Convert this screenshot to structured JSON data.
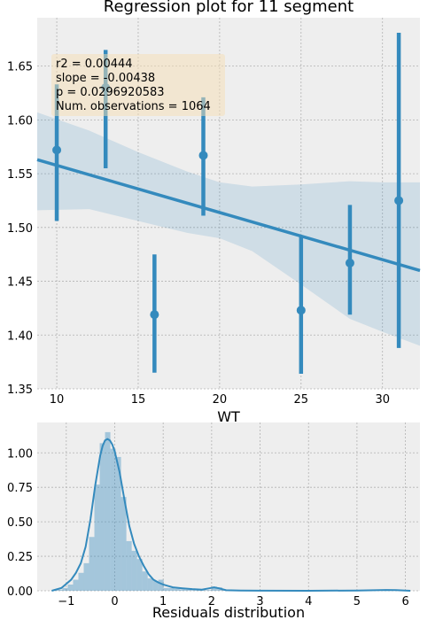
{
  "chart_data": [
    {
      "type": "scatter",
      "title": "Regression plot for 11 segment",
      "xlabel": "WT",
      "ylabel": "",
      "xlim": [
        8.8,
        32.3
      ],
      "ylim": [
        1.35,
        1.695
      ],
      "x_ticks": [
        10,
        15,
        20,
        25,
        30
      ],
      "y_ticks": [
        1.35,
        1.4,
        1.45,
        1.5,
        1.55,
        1.6,
        1.65
      ],
      "grid": true,
      "points": [
        {
          "x": 10,
          "y": 1.572,
          "err_low": 1.506,
          "err_high": 1.633
        },
        {
          "x": 13,
          "y": 1.63,
          "err_low": 1.555,
          "err_high": 1.665
        },
        {
          "x": 16,
          "y": 1.419,
          "err_low": 1.365,
          "err_high": 1.475
        },
        {
          "x": 19,
          "y": 1.567,
          "err_low": 1.511,
          "err_high": 1.621
        },
        {
          "x": 25,
          "y": 1.423,
          "err_low": 1.364,
          "err_high": 1.492
        },
        {
          "x": 28,
          "y": 1.467,
          "err_low": 1.419,
          "err_high": 1.521
        },
        {
          "x": 31,
          "y": 1.525,
          "err_low": 1.388,
          "err_high": 1.681
        }
      ],
      "regression_line": {
        "x": [
          8.8,
          32.3
        ],
        "y": [
          1.563,
          1.46
        ]
      },
      "confidence_band": {
        "x": [
          8.8,
          12,
          15,
          18,
          20,
          22,
          25,
          28,
          30,
          32.3
        ],
        "upper": [
          1.607,
          1.59,
          1.57,
          1.552,
          1.542,
          1.538,
          1.54,
          1.543,
          1.542,
          1.542
        ],
        "lower": [
          1.516,
          1.517,
          1.506,
          1.495,
          1.49,
          1.478,
          1.447,
          1.415,
          1.403,
          1.39
        ]
      },
      "annotation": [
        "r2 = 0.00444",
        "slope = -0.00438",
        "p = 0.0296920583",
        "Num. observations = 1064"
      ],
      "colors": {
        "line": "#348abd",
        "band": "#348abd",
        "annotation_box": "#f5deb3",
        "background": "#eeeeee"
      }
    },
    {
      "type": "bar",
      "title": "",
      "xlabel": "Residuals distribution",
      "ylabel": "",
      "xlim": [
        -1.6,
        6.3
      ],
      "ylim": [
        0,
        1.22
      ],
      "x_ticks": [
        -1,
        0,
        1,
        2,
        3,
        4,
        5,
        6
      ],
      "y_ticks": [
        0.0,
        0.25,
        0.5,
        0.75,
        1.0
      ],
      "grid": true,
      "histogram": {
        "bin_width": 0.11,
        "bins": [
          {
            "x": -1.3,
            "y": 0.003
          },
          {
            "x": -1.19,
            "y": 0.008
          },
          {
            "x": -1.08,
            "y": 0.02
          },
          {
            "x": -0.97,
            "y": 0.045
          },
          {
            "x": -0.86,
            "y": 0.08
          },
          {
            "x": -0.75,
            "y": 0.13
          },
          {
            "x": -0.64,
            "y": 0.2
          },
          {
            "x": -0.53,
            "y": 0.39
          },
          {
            "x": -0.42,
            "y": 0.77
          },
          {
            "x": -0.31,
            "y": 1.07
          },
          {
            "x": -0.2,
            "y": 1.15
          },
          {
            "x": -0.09,
            "y": 1.03
          },
          {
            "x": 0.02,
            "y": 0.97
          },
          {
            "x": 0.13,
            "y": 0.68
          },
          {
            "x": 0.24,
            "y": 0.36
          },
          {
            "x": 0.35,
            "y": 0.29
          },
          {
            "x": 0.46,
            "y": 0.23
          },
          {
            "x": 0.57,
            "y": 0.14
          },
          {
            "x": 0.68,
            "y": 0.09
          },
          {
            "x": 0.79,
            "y": 0.07
          },
          {
            "x": 0.9,
            "y": 0.08
          },
          {
            "x": 1.01,
            "y": 0.02
          },
          {
            "x": 1.12,
            "y": 0.02
          },
          {
            "x": 1.23,
            "y": 0.015
          },
          {
            "x": 1.34,
            "y": 0.01
          },
          {
            "x": 1.45,
            "y": 0.008
          },
          {
            "x": 1.56,
            "y": 0.005
          },
          {
            "x": 1.67,
            "y": 0.004
          },
          {
            "x": 1.78,
            "y": 0.004
          },
          {
            "x": 1.89,
            "y": 0.005
          },
          {
            "x": 2.0,
            "y": 0.03
          },
          {
            "x": 2.11,
            "y": 0.025
          },
          {
            "x": 2.22,
            "y": 0.005
          },
          {
            "x": 2.33,
            "y": 0.003
          }
        ]
      },
      "kde": {
        "x": [
          -1.3,
          -1.1,
          -0.9,
          -0.8,
          -0.7,
          -0.6,
          -0.5,
          -0.4,
          -0.3,
          -0.25,
          -0.2,
          -0.15,
          -0.1,
          -0.05,
          0,
          0.1,
          0.2,
          0.3,
          0.4,
          0.5,
          0.6,
          0.7,
          0.8,
          0.9,
          1.0,
          1.1,
          1.2,
          1.4,
          1.6,
          1.8,
          1.95,
          2.05,
          2.15,
          2.3,
          2.6,
          3.0,
          4.0,
          5.0,
          5.6,
          5.8,
          6.0,
          6.1
        ],
        "y": [
          0.0,
          0.02,
          0.08,
          0.13,
          0.2,
          0.32,
          0.52,
          0.77,
          0.98,
          1.05,
          1.09,
          1.1,
          1.09,
          1.06,
          1.01,
          0.86,
          0.66,
          0.47,
          0.34,
          0.25,
          0.18,
          0.12,
          0.08,
          0.06,
          0.045,
          0.035,
          0.025,
          0.018,
          0.012,
          0.008,
          0.018,
          0.025,
          0.018,
          0.004,
          0.002,
          0.001,
          0.0,
          0.002,
          0.006,
          0.005,
          0.002,
          0.0
        ]
      },
      "colors": {
        "line": "#348abd",
        "bars": "#348abd",
        "background": "#eeeeee"
      }
    }
  ]
}
